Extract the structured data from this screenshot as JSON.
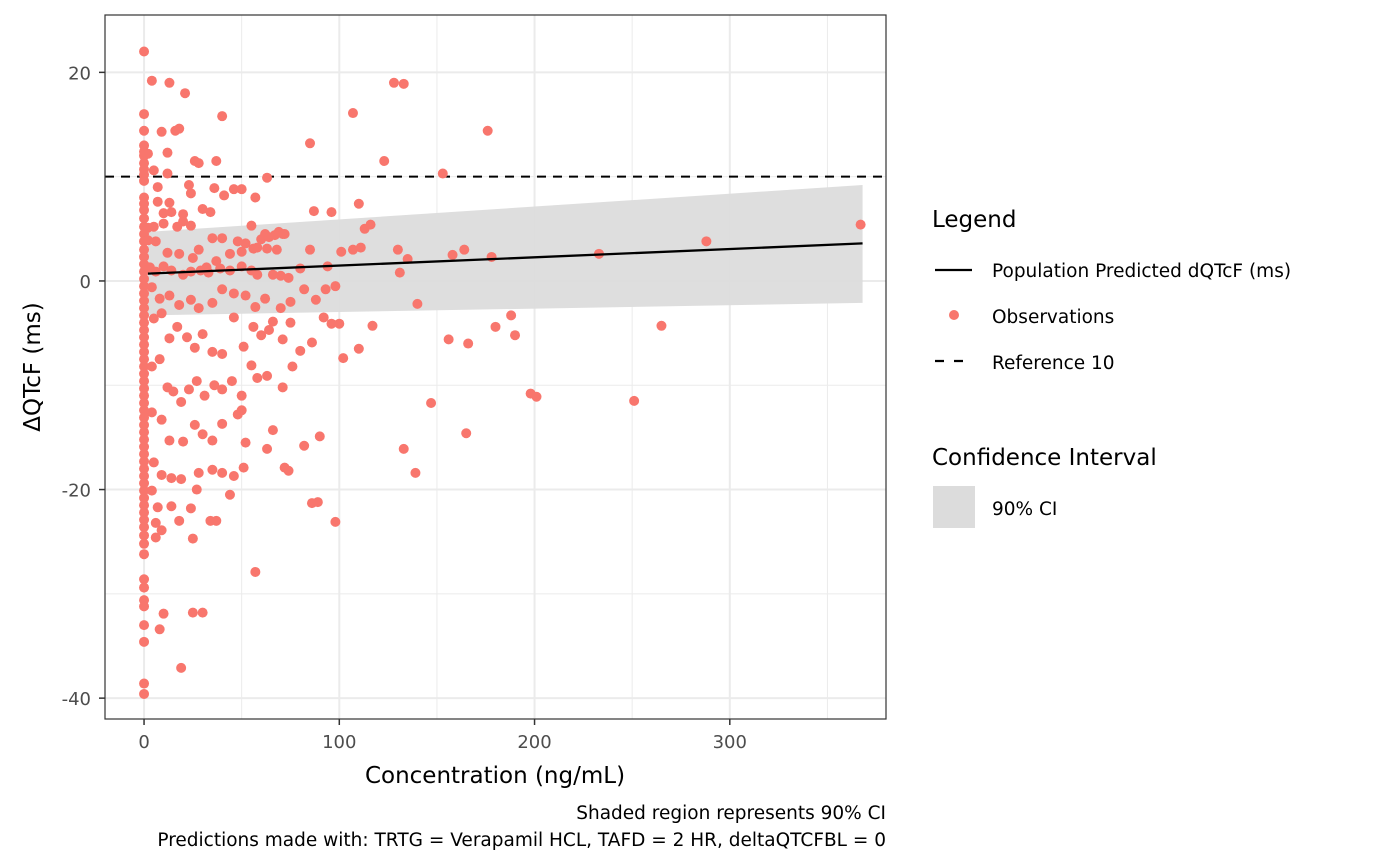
{
  "chart_data": {
    "type": "scatter",
    "title": "",
    "xlabel": "Concentration (ng/mL)",
    "ylabel": "ΔQTcF (ms)",
    "xlim": [
      -20,
      380
    ],
    "ylim": [
      -42,
      25.5
    ],
    "x_ticks": [
      0,
      100,
      200,
      300
    ],
    "x_tick_labels": [
      "0",
      "100",
      "200",
      "300"
    ],
    "x_minor_ticks": [
      50,
      150,
      250,
      350
    ],
    "y_ticks": [
      -40,
      -20,
      0,
      20
    ],
    "y_tick_labels": [
      "-40",
      "-20",
      "0",
      "20"
    ],
    "y_minor_ticks": [
      -30,
      -10,
      10
    ],
    "grid": true,
    "legend_position": "right",
    "colors": {
      "observation": "#F8766D",
      "line": "#000000",
      "ci_fill": "#DCDCDC",
      "reference": "#000000",
      "grid": "#EBEBEB",
      "panel_border": "#333333"
    },
    "reference_line": {
      "y": 10,
      "label": "Reference 10",
      "style": "dashed"
    },
    "prediction_line": {
      "name": "Population Predicted dQTcF (ms)",
      "x": [
        2,
        368
      ],
      "y": [
        0.7,
        3.6
      ]
    },
    "ci_band": {
      "name": "90% CI",
      "x": [
        2,
        368
      ],
      "upper": [
        4.7,
        9.2
      ],
      "lower": [
        -3.3,
        -2.1
      ]
    },
    "series": [
      {
        "name": "Observations",
        "points": [
          [
            0,
            22
          ],
          [
            0,
            16
          ],
          [
            0,
            14.4
          ],
          [
            0,
            13
          ],
          [
            0,
            12.4
          ],
          [
            0,
            12
          ],
          [
            0,
            11.3
          ],
          [
            0,
            10.7
          ],
          [
            0,
            10.2
          ],
          [
            0,
            9.6
          ],
          [
            0,
            8
          ],
          [
            0,
            7.4
          ],
          [
            0,
            6.8
          ],
          [
            0,
            6
          ],
          [
            0,
            5.2
          ],
          [
            0,
            4.5
          ],
          [
            0,
            3.8
          ],
          [
            0,
            3
          ],
          [
            0,
            2.3
          ],
          [
            0,
            1.6
          ],
          [
            0,
            0.9
          ],
          [
            0,
            0.2
          ],
          [
            0,
            -0.5
          ],
          [
            0,
            -1.2
          ],
          [
            0,
            -1.9
          ],
          [
            0,
            -2.6
          ],
          [
            0,
            -3.3
          ],
          [
            0,
            -4
          ],
          [
            0,
            -4.7
          ],
          [
            0,
            -5.4
          ],
          [
            0,
            -6.1
          ],
          [
            0,
            -6.8
          ],
          [
            0,
            -7.5
          ],
          [
            0,
            -8.2
          ],
          [
            0,
            -8.9
          ],
          [
            0,
            -9.6
          ],
          [
            0,
            -10.3
          ],
          [
            0,
            -11
          ],
          [
            0,
            -11.7
          ],
          [
            0,
            -12.4
          ],
          [
            0,
            -13.1
          ],
          [
            0,
            -13.8
          ],
          [
            0,
            -14.5
          ],
          [
            0,
            -15.2
          ],
          [
            0,
            -15.9
          ],
          [
            0,
            -16.6
          ],
          [
            0,
            -17.3
          ],
          [
            0,
            -18
          ],
          [
            0,
            -18.7
          ],
          [
            0,
            -19.4
          ],
          [
            0,
            -20.1
          ],
          [
            0,
            -20.8
          ],
          [
            0,
            -21.5
          ],
          [
            0,
            -22.2
          ],
          [
            0,
            -22.9
          ],
          [
            0,
            -23.6
          ],
          [
            0,
            -24.4
          ],
          [
            0,
            -25.2
          ],
          [
            0,
            -26.2
          ],
          [
            0,
            -28.6
          ],
          [
            0,
            -29.4
          ],
          [
            0,
            -30.6
          ],
          [
            0,
            -31.2
          ],
          [
            0,
            -33
          ],
          [
            0,
            -34.6
          ],
          [
            0,
            -38.6
          ],
          [
            0,
            -39.6
          ],
          [
            4,
            19.2
          ],
          [
            13,
            19
          ],
          [
            21,
            18
          ],
          [
            40,
            15.8
          ],
          [
            2,
            12.2
          ],
          [
            9,
            14.3
          ],
          [
            12,
            12.3
          ],
          [
            16,
            14.4
          ],
          [
            18,
            14.6
          ],
          [
            26,
            11.5
          ],
          [
            28,
            11.3
          ],
          [
            37,
            11.5
          ],
          [
            5,
            10.6
          ],
          [
            12,
            10.3
          ],
          [
            7,
            9
          ],
          [
            23,
            9.2
          ],
          [
            24,
            8.4
          ],
          [
            36,
            8.9
          ],
          [
            46,
            8.8
          ],
          [
            50,
            8.8
          ],
          [
            57,
            8
          ],
          [
            63,
            9.9
          ],
          [
            41,
            8.2
          ],
          [
            7,
            7.6
          ],
          [
            13,
            7.5
          ],
          [
            10,
            6.5
          ],
          [
            14,
            6.6
          ],
          [
            20,
            6.4
          ],
          [
            30,
            6.9
          ],
          [
            34,
            6.6
          ],
          [
            20,
            5.7
          ],
          [
            2,
            5.1
          ],
          [
            5,
            5.2
          ],
          [
            10,
            5.5
          ],
          [
            17,
            5.2
          ],
          [
            24,
            5.3
          ],
          [
            28,
            3
          ],
          [
            35,
            4.1
          ],
          [
            40,
            4.1
          ],
          [
            48,
            3.8
          ],
          [
            52,
            3.6
          ],
          [
            55,
            5.3
          ],
          [
            62,
            4.5
          ],
          [
            67,
            4.4
          ],
          [
            69,
            4.7
          ],
          [
            71,
            4.5
          ],
          [
            58,
            3.2
          ],
          [
            63,
            3.1
          ],
          [
            68,
            3
          ],
          [
            2,
            3.9
          ],
          [
            6,
            3.8
          ],
          [
            12,
            2.7
          ],
          [
            18,
            2.6
          ],
          [
            25,
            2.2
          ],
          [
            32,
            1.3
          ],
          [
            37,
            1.9
          ],
          [
            44,
            2.6
          ],
          [
            50,
            2.8
          ],
          [
            56,
            3.1
          ],
          [
            60,
            4
          ],
          [
            64,
            4.2
          ],
          [
            72,
            4.5
          ],
          [
            3,
            1.3
          ],
          [
            6,
            0.9
          ],
          [
            10,
            1.4
          ],
          [
            14,
            1
          ],
          [
            20,
            0.6
          ],
          [
            24,
            0.9
          ],
          [
            29,
            1
          ],
          [
            33,
            0.8
          ],
          [
            39,
            1.2
          ],
          [
            44,
            1
          ],
          [
            50,
            1.4
          ],
          [
            55,
            1
          ],
          [
            58,
            0.6
          ],
          [
            66,
            0.6
          ],
          [
            70,
            0.5
          ],
          [
            74,
            0.3
          ],
          [
            80,
            1.2
          ],
          [
            85,
            3
          ],
          [
            94,
            1.4
          ],
          [
            101,
            2.8
          ],
          [
            107,
            3
          ],
          [
            111,
            3.2
          ],
          [
            113,
            5
          ],
          [
            116,
            5.4
          ],
          [
            123,
            11.5
          ],
          [
            128,
            19
          ],
          [
            133,
            18.9
          ],
          [
            107,
            16.1
          ],
          [
            85,
            13.2
          ],
          [
            87,
            6.7
          ],
          [
            96,
            6.6
          ],
          [
            110,
            7.4
          ],
          [
            130,
            3
          ],
          [
            135,
            2.1
          ],
          [
            131,
            0.8
          ],
          [
            153,
            10.3
          ],
          [
            158,
            2.5
          ],
          [
            164,
            3
          ],
          [
            176,
            14.4
          ],
          [
            178,
            2.3
          ],
          [
            233,
            2.6
          ],
          [
            288,
            3.8
          ],
          [
            367,
            5.4
          ],
          [
            4,
            -0.6
          ],
          [
            8,
            -1.7
          ],
          [
            13,
            -1.4
          ],
          [
            18,
            -2.3
          ],
          [
            24,
            -1.8
          ],
          [
            28,
            -2.6
          ],
          [
            35,
            -2.1
          ],
          [
            40,
            -0.8
          ],
          [
            46,
            -1.2
          ],
          [
            52,
            -1.4
          ],
          [
            57,
            -2.5
          ],
          [
            62,
            -1.7
          ],
          [
            70,
            -2.6
          ],
          [
            75,
            -2
          ],
          [
            82,
            -0.8
          ],
          [
            88,
            -1.8
          ],
          [
            93,
            -0.8
          ],
          [
            98,
            -0.5
          ],
          [
            140,
            -2.2
          ],
          [
            5,
            -3.6
          ],
          [
            9,
            -3.1
          ],
          [
            13,
            -5.5
          ],
          [
            17,
            -4.4
          ],
          [
            22,
            -5.4
          ],
          [
            26,
            -6.4
          ],
          [
            30,
            -5.1
          ],
          [
            35,
            -6.8
          ],
          [
            40,
            -7
          ],
          [
            46,
            -3.5
          ],
          [
            51,
            -6.3
          ],
          [
            56,
            -4.4
          ],
          [
            60,
            -5.2
          ],
          [
            64,
            -4.7
          ],
          [
            66,
            -3.9
          ],
          [
            71,
            -5.6
          ],
          [
            75,
            -4
          ],
          [
            80,
            -6.7
          ],
          [
            86,
            -5.9
          ],
          [
            92,
            -3.5
          ],
          [
            96,
            -4.1
          ],
          [
            100,
            -4.1
          ],
          [
            102,
            -7.4
          ],
          [
            110,
            -6.5
          ],
          [
            117,
            -4.3
          ],
          [
            156,
            -5.6
          ],
          [
            166,
            -6
          ],
          [
            180,
            -4.4
          ],
          [
            188,
            -3.3
          ],
          [
            190,
            -5.2
          ],
          [
            265,
            -4.3
          ],
          [
            4,
            -8.2
          ],
          [
            8,
            -7.5
          ],
          [
            12,
            -10.2
          ],
          [
            15,
            -10.6
          ],
          [
            19,
            -11.6
          ],
          [
            23,
            -10.4
          ],
          [
            27,
            -9.6
          ],
          [
            31,
            -11
          ],
          [
            36,
            -10
          ],
          [
            40,
            -10.4
          ],
          [
            45,
            -9.6
          ],
          [
            50,
            -11
          ],
          [
            55,
            -8.1
          ],
          [
            58,
            -9.3
          ],
          [
            63,
            -9.1
          ],
          [
            71,
            -10.2
          ],
          [
            76,
            -8.2
          ],
          [
            147,
            -11.7
          ],
          [
            198,
            -10.8
          ],
          [
            201,
            -11.1
          ],
          [
            251,
            -11.5
          ],
          [
            4,
            -12.6
          ],
          [
            9,
            -13.3
          ],
          [
            13,
            -15.3
          ],
          [
            20,
            -15.4
          ],
          [
            26,
            -13.8
          ],
          [
            30,
            -14.7
          ],
          [
            35,
            -15.3
          ],
          [
            40,
            -13.7
          ],
          [
            48,
            -12.8
          ],
          [
            50,
            -12.4
          ],
          [
            52,
            -15.5
          ],
          [
            63,
            -16.1
          ],
          [
            66,
            -14.3
          ],
          [
            82,
            -15.8
          ],
          [
            90,
            -14.9
          ],
          [
            133,
            -16.1
          ],
          [
            165,
            -14.6
          ],
          [
            5,
            -17.4
          ],
          [
            9,
            -18.6
          ],
          [
            14,
            -18.9
          ],
          [
            19,
            -19
          ],
          [
            28,
            -18.4
          ],
          [
            35,
            -18.1
          ],
          [
            40,
            -18.4
          ],
          [
            46,
            -18.7
          ],
          [
            51,
            -17.9
          ],
          [
            72,
            -17.9
          ],
          [
            74,
            -18.2
          ],
          [
            139,
            -18.4
          ],
          [
            4,
            -20.1
          ],
          [
            7,
            -21.7
          ],
          [
            14,
            -21.6
          ],
          [
            18,
            -23
          ],
          [
            24,
            -21.8
          ],
          [
            27,
            -20
          ],
          [
            34,
            -23
          ],
          [
            37,
            -23
          ],
          [
            44,
            -20.5
          ],
          [
            86,
            -21.3
          ],
          [
            89,
            -21.2
          ],
          [
            98,
            -23.1
          ],
          [
            6,
            -23.2
          ],
          [
            9,
            -23.9
          ],
          [
            6,
            -24.6
          ],
          [
            25,
            -24.7
          ],
          [
            57,
            -27.9
          ],
          [
            10,
            -31.9
          ],
          [
            25,
            -31.8
          ],
          [
            30,
            -31.8
          ],
          [
            8,
            -33.4
          ],
          [
            19,
            -37.1
          ]
        ]
      }
    ],
    "legend": {
      "title": "Legend",
      "items": [
        {
          "label": "Population Predicted dQTcF (ms)",
          "symbol": "solid-line"
        },
        {
          "label": "Observations",
          "symbol": "point"
        },
        {
          "label": "Reference 10",
          "symbol": "dashed-line"
        }
      ],
      "ci_title": "Confidence Interval",
      "ci_items": [
        {
          "label": "90% CI",
          "symbol": "filled-box"
        }
      ]
    },
    "captions": [
      "Shaded region represents 90% CI",
      "Predictions made with: TRTG = Verapamil HCL, TAFD = 2 HR, deltaQTCFBL = 0"
    ]
  }
}
